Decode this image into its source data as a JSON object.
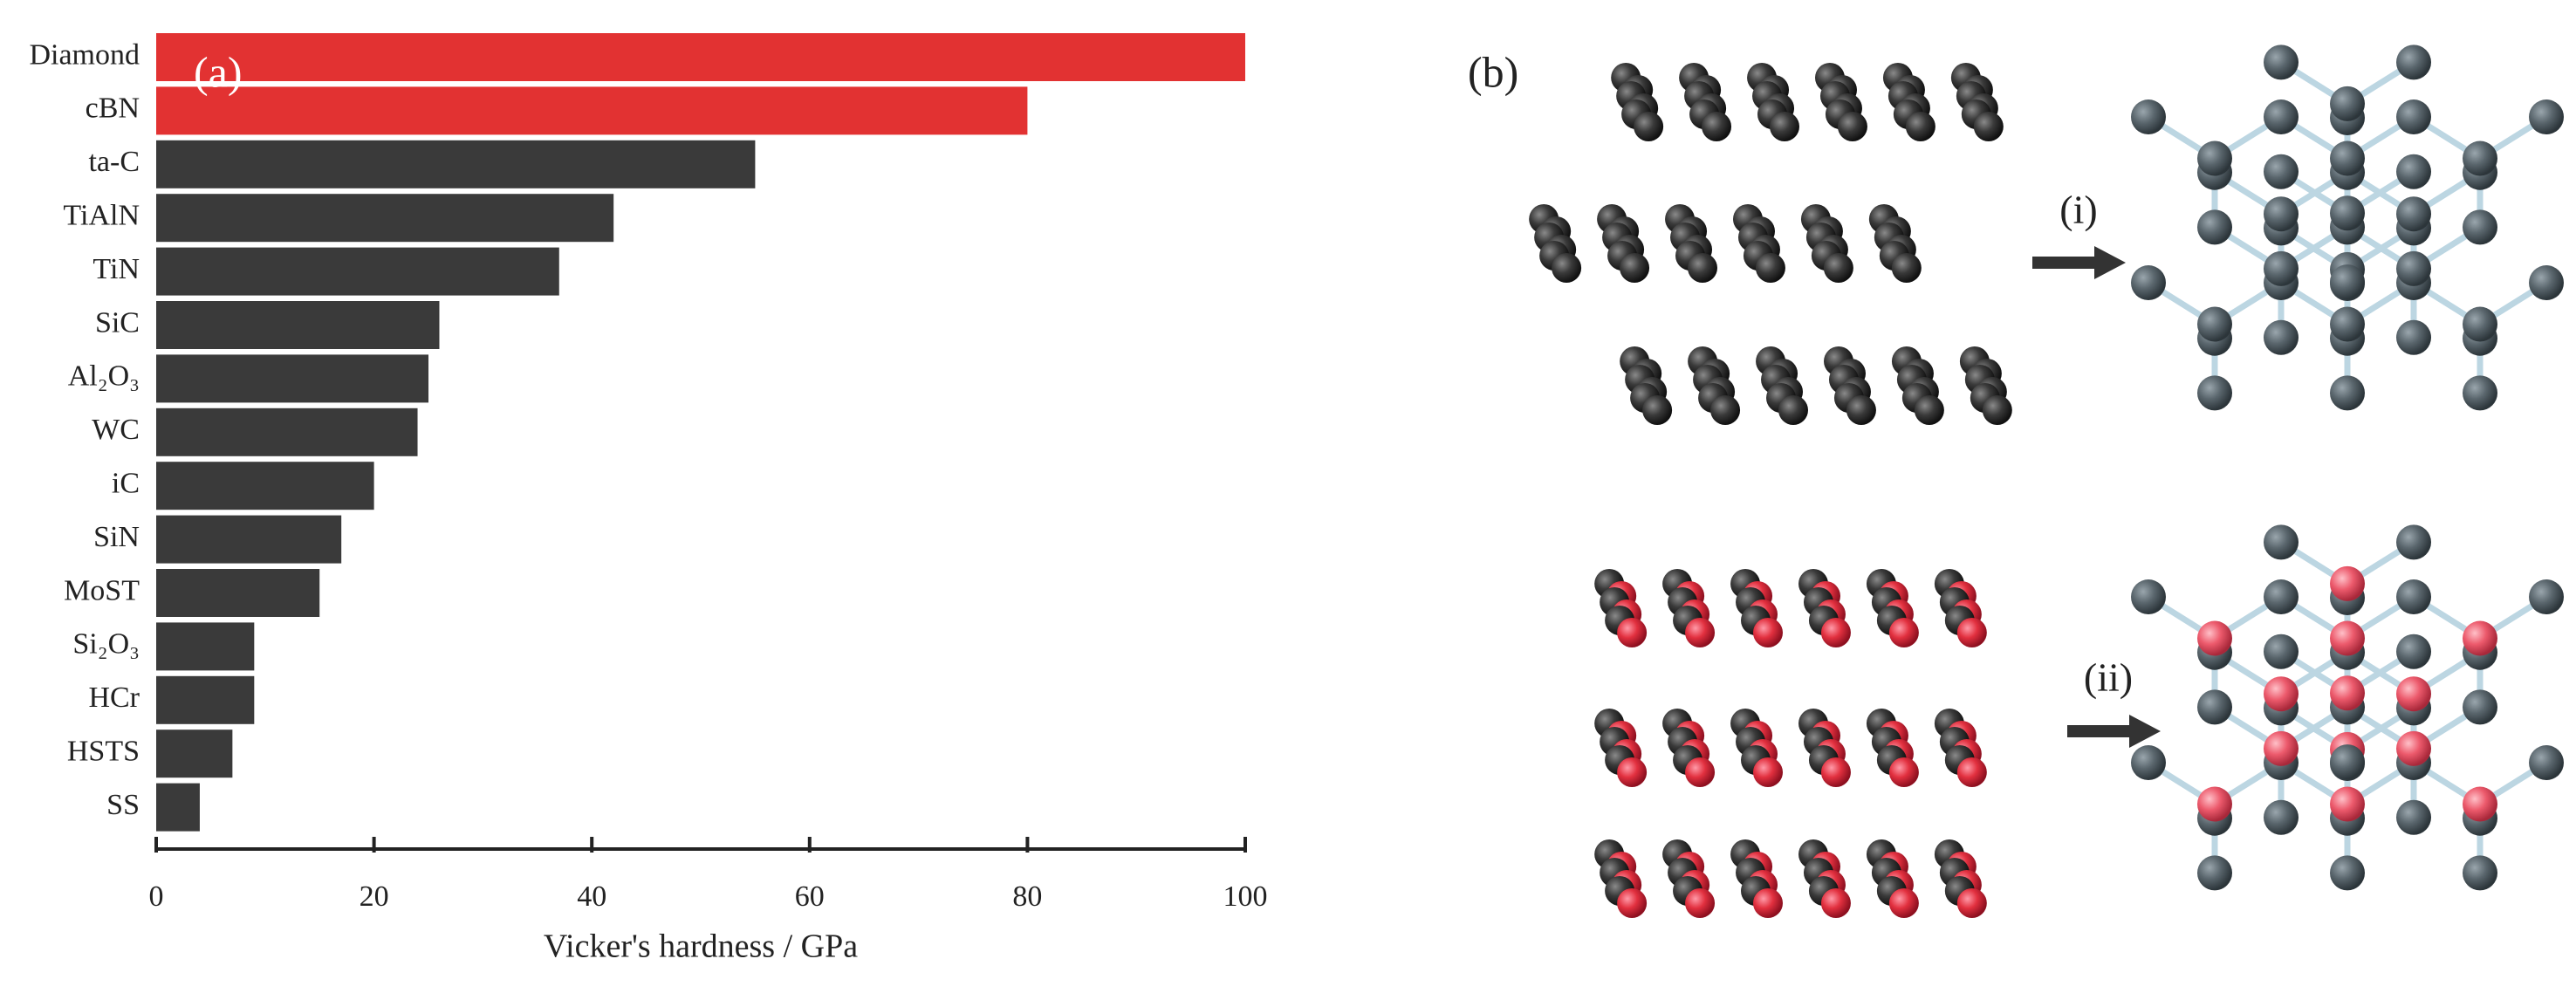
{
  "chart_data": {
    "type": "bar",
    "orientation": "horizontal",
    "categories": [
      "Diamond",
      "cBN",
      "ta-C",
      "TiAlN",
      "TiN",
      "SiC",
      "Al₂O₃",
      "WC",
      "iC",
      "SiN",
      "MoST",
      "Si₂O₃",
      "HCr",
      "HSTS",
      "SS"
    ],
    "values": [
      100,
      80,
      55,
      42,
      37,
      26,
      25,
      24,
      20,
      17,
      15,
      9,
      9,
      7,
      4
    ],
    "colors": [
      "#e23232",
      "#e23232",
      "#3a3a3a",
      "#3a3a3a",
      "#3a3a3a",
      "#3a3a3a",
      "#3a3a3a",
      "#3a3a3a",
      "#3a3a3a",
      "#3a3a3a",
      "#3a3a3a",
      "#3a3a3a",
      "#3a3a3a",
      "#3a3a3a",
      "#3a3a3a"
    ],
    "xlabel": "Vicker's hardness / GPa",
    "xlim": [
      0,
      100
    ],
    "xticks": [
      0,
      20,
      40,
      60,
      80,
      100
    ]
  },
  "panel_a": "(a)",
  "panel_b": "(b)",
  "arrows": [
    "(i)",
    "(ii)"
  ]
}
